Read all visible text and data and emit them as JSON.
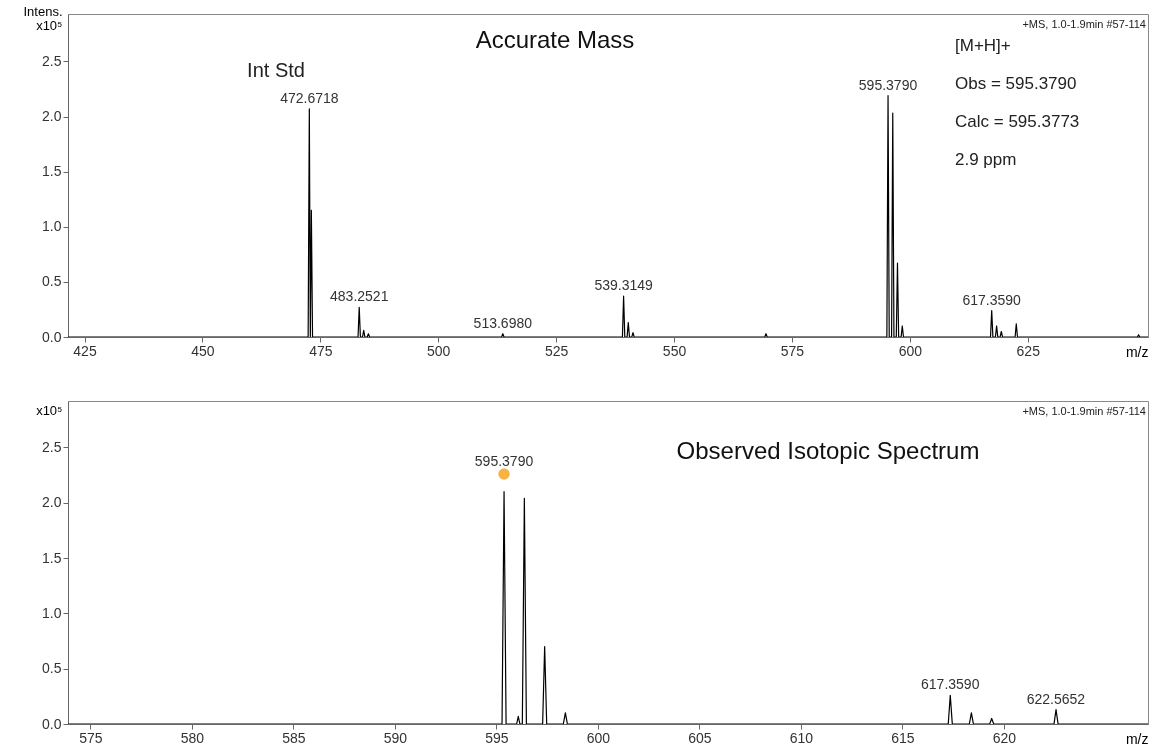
{
  "chart_data": [
    {
      "type": "line",
      "title": "Accurate Mass",
      "xlabel": "m/z",
      "ylabel": "Intens.\nx10⁵",
      "xlim": [
        421.5,
        650.5
      ],
      "xticks": [
        425,
        450,
        475,
        500,
        525,
        550,
        575,
        600,
        625
      ],
      "ylim": [
        0,
        2.93
      ],
      "yticks": [
        {
          "value": 0,
          "label": "0.0"
        },
        0.5,
        {
          "value": 1,
          "label": "1.0"
        },
        1.5,
        {
          "value": 2,
          "label": "2.0"
        },
        2.5
      ],
      "grid": false,
      "series": [
        {
          "color": "#000000",
          "x": [
            421.5,
            472.42,
            472.67,
            472.88,
            473.1,
            473.35,
            483.0,
            483.25,
            483.5,
            483.95,
            484.2,
            484.45,
            484.95,
            485.2,
            485.45,
            513.45,
            513.7,
            513.95,
            539.06,
            539.31,
            539.56,
            540.05,
            540.3,
            540.55,
            541.05,
            541.3,
            541.55,
            569.25,
            569.5,
            569.75,
            595.13,
            595.38,
            595.63,
            596.13,
            596.38,
            596.63,
            597.13,
            597.38,
            597.63,
            598.15,
            598.4,
            598.65,
            617.11,
            617.36,
            617.61,
            618.15,
            618.4,
            618.65,
            619.15,
            619.4,
            619.65,
            622.32,
            622.57,
            622.82,
            648.25,
            648.5,
            648.75,
            650.5
          ],
          "values": [
            0,
            0,
            2.07,
            0,
            1.15,
            0,
            0,
            0.27,
            0,
            0,
            0.06,
            0,
            0,
            0.03,
            0,
            0,
            0.03,
            0,
            0,
            0.37,
            0,
            0,
            0.13,
            0,
            0,
            0.04,
            0,
            0,
            0.03,
            0,
            0,
            2.19,
            0,
            0,
            2.03,
            0,
            0,
            0.67,
            0,
            0,
            0.1,
            0,
            0,
            0.24,
            0,
            0,
            0.1,
            0,
            0,
            0.05,
            0,
            0,
            0.12,
            0,
            0,
            0.02,
            0,
            0
          ]
        }
      ],
      "annotations": [
        "+MS, 1.0-1.9min #57-114",
        "Int Std",
        "[M+H]+",
        "Obs = 595.3790",
        "Calc = 595.3773",
        "2.9 ppm",
        {
          "text": "472.6718",
          "x": 472.6718,
          "y": 2.07
        },
        {
          "text": "483.2521",
          "x": 483.2521,
          "y": 0.27
        },
        {
          "text": "513.6980",
          "x": 513.698,
          "y": 0.03
        },
        {
          "text": "539.3149",
          "x": 539.3149,
          "y": 0.37
        },
        {
          "text": "595.3790",
          "x": 595.379,
          "y": 2.19
        },
        {
          "text": "617.3590",
          "x": 617.359,
          "y": 0.24
        }
      ]
    },
    {
      "type": "line",
      "title": "Observed Isotopic Spectrum",
      "xlabel": "m/z",
      "ylabel": "x10⁵",
      "xlim": [
        573.9,
        627.1
      ],
      "xticks": [
        575,
        580,
        585,
        590,
        595,
        600,
        605,
        610,
        615,
        620
      ],
      "ylim": [
        0,
        2.92
      ],
      "yticks": [
        {
          "value": 0,
          "label": "0.0"
        },
        0.5,
        {
          "value": 1,
          "label": "1.0"
        },
        1.5,
        {
          "value": 2,
          "label": "2.0"
        },
        2.5
      ],
      "grid": false,
      "series": [
        {
          "color": "#000000",
          "x": [
            573.9,
            595.28,
            595.38,
            595.48,
            596.0,
            596.08,
            596.16,
            596.28,
            596.38,
            596.48,
            597.28,
            597.38,
            597.48,
            598.3,
            598.4,
            598.5,
            617.26,
            617.36,
            617.46,
            618.3,
            618.4,
            618.5,
            619.3,
            619.4,
            619.5,
            622.47,
            622.57,
            622.67,
            627.1
          ],
          "values": [
            0,
            0,
            2.1,
            0,
            0,
            0.07,
            0,
            0,
            2.04,
            0,
            0,
            0.7,
            0,
            0,
            0.1,
            0,
            0,
            0.26,
            0,
            0,
            0.1,
            0,
            0,
            0.05,
            0,
            0,
            0.13,
            0,
            0
          ]
        },
        {
          "type": "scatter",
          "color": "#f5a623",
          "marker": "circle",
          "x": [
            595.379
          ],
          "values": [
            2.26
          ]
        }
      ],
      "annotations": [
        "+MS, 1.0-1.9min #57-114",
        {
          "text": "595.3790",
          "x": 595.379,
          "y": 2.28
        },
        {
          "text": "617.3590",
          "x": 617.359,
          "y": 0.26
        },
        {
          "text": "622.5652",
          "x": 622.5652,
          "y": 0.13
        }
      ]
    }
  ]
}
